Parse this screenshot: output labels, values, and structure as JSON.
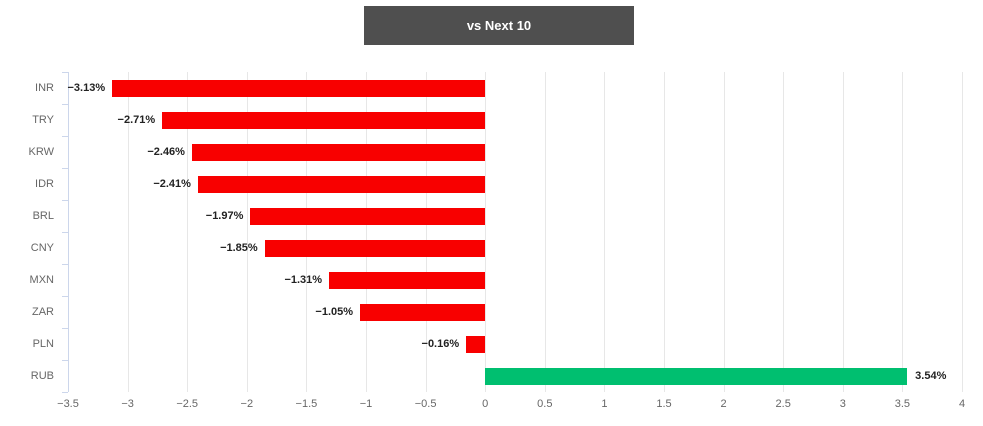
{
  "header": {
    "title": "vs Next 10"
  },
  "chart_data": {
    "type": "bar",
    "orientation": "horizontal",
    "title": "vs Next 10",
    "categories": [
      "INR",
      "TRY",
      "KRW",
      "IDR",
      "BRL",
      "CNY",
      "MXN",
      "ZAR",
      "PLN",
      "RUB"
    ],
    "values": [
      -3.13,
      -2.71,
      -2.46,
      -2.41,
      -1.97,
      -1.85,
      -1.31,
      -1.05,
      -0.16,
      3.54
    ],
    "value_labels": [
      "−3.13%",
      "−2.71%",
      "−2.46%",
      "−2.41%",
      "−1.97%",
      "−1.85%",
      "−1.31%",
      "−1.05%",
      "−0.16%",
      "3.54%"
    ],
    "xlim": [
      -3.5,
      4
    ],
    "x_ticks": [
      -3.5,
      -3,
      -2.5,
      -2,
      -1.5,
      -1,
      -0.5,
      0,
      0.5,
      1,
      1.5,
      2,
      2.5,
      3,
      3.5,
      4
    ],
    "x_tick_labels": [
      "−3.5",
      "−3",
      "−2.5",
      "−2",
      "−1.5",
      "−1",
      "−0.5",
      "0",
      "0.5",
      "1",
      "1.5",
      "2",
      "2.5",
      "3",
      "3.5",
      "4"
    ],
    "grid": true,
    "legend": false,
    "colors": {
      "negative": "#f80000",
      "positive": "#00bf70",
      "grid": "#e7e7e7",
      "axis": "#ccd6eb",
      "category_label": "#666666",
      "tick_label": "#666666",
      "value_label": "#222222",
      "title_bg": "#4f4f4f",
      "title_text": "#ffffff"
    }
  }
}
